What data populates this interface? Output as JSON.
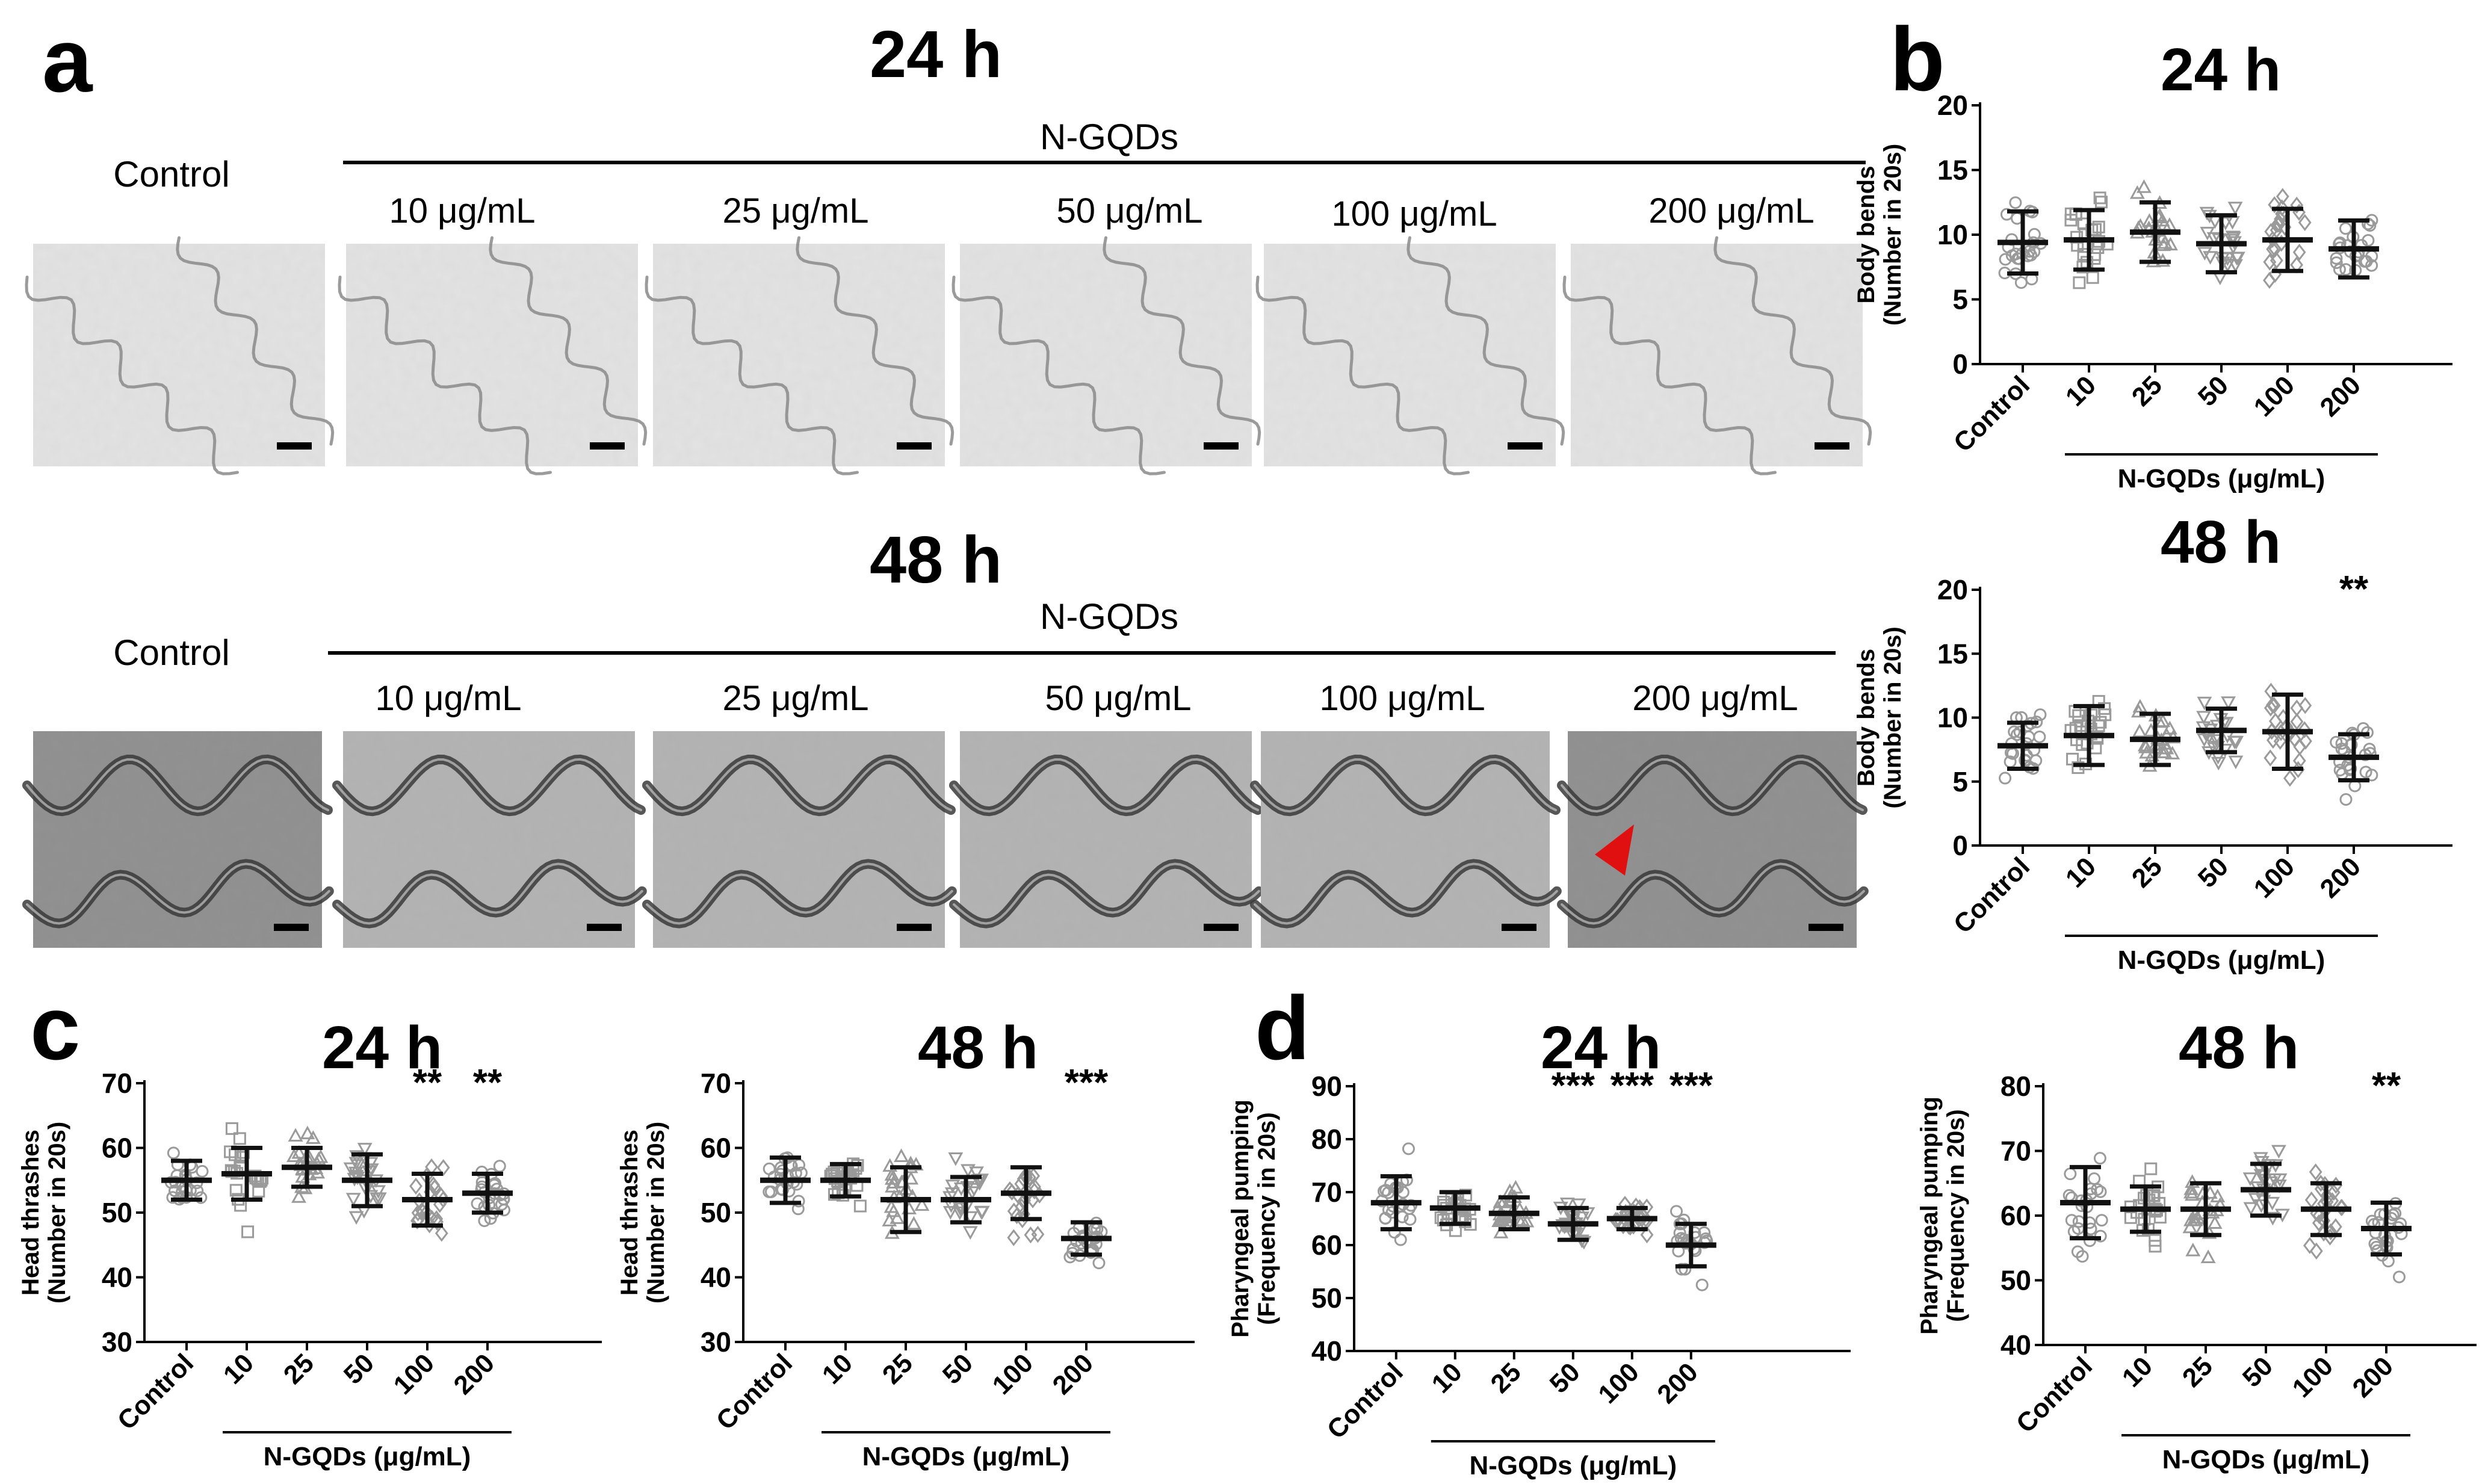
{
  "panel_a": {
    "letter": "a",
    "rows": [
      {
        "time": "24 h",
        "control_label": "Control",
        "group_label": "N-GQDs",
        "conc_labels": [
          "10 μg/mL",
          "25 μg/mL",
          "50 μg/mL",
          "100 μg/mL",
          "200 μg/mL"
        ]
      },
      {
        "time": "48 h",
        "control_label": "Control",
        "group_label": "N-GQDs",
        "conc_labels": [
          "10 μg/mL",
          "25 μg/mL",
          "50 μg/mL",
          "100 μg/mL",
          "200 μg/mL"
        ]
      }
    ]
  },
  "colors": {
    "bar_dark": "#111111",
    "marker": "#9a9a9a",
    "arrow": "#e01010",
    "image_bg_light": "#e2e2e2",
    "image_bg_dark": "#a9a9a9"
  },
  "chart_data": [
    {
      "id": "b24",
      "panel_letter": "b",
      "type": "scatter",
      "title": "24 h",
      "ylabel": [
        "Body bends",
        "(Number in 20s)"
      ],
      "ylim": [
        0,
        20
      ],
      "yticks": [
        0,
        5,
        10,
        15,
        20
      ],
      "categories": [
        "Control",
        "10",
        "25",
        "50",
        "100",
        "200"
      ],
      "xgroup_label": "N-GQDs (μg/mL)",
      "means": [
        9.4,
        9.6,
        10.2,
        9.3,
        9.6,
        8.9
      ],
      "sd": [
        2.4,
        2.3,
        2.3,
        2.2,
        2.4,
        2.2
      ],
      "marker_shapes": [
        "circle",
        "square",
        "triangle",
        "triangle-down",
        "diamond",
        "circle"
      ],
      "significance": [
        "",
        "",
        "",
        "",
        "",
        ""
      ]
    },
    {
      "id": "b48",
      "panel_letter": "",
      "type": "scatter",
      "title": "48 h",
      "ylabel": [
        "Body bends",
        "(Number in 20s)"
      ],
      "ylim": [
        0,
        20
      ],
      "yticks": [
        0,
        5,
        10,
        15,
        20
      ],
      "categories": [
        "Control",
        "10",
        "25",
        "50",
        "100",
        "200"
      ],
      "xgroup_label": "N-GQDs (μg/mL)",
      "means": [
        7.8,
        8.6,
        8.3,
        9.0,
        8.9,
        6.9
      ],
      "sd": [
        1.8,
        2.3,
        2.0,
        1.7,
        2.9,
        1.8
      ],
      "marker_shapes": [
        "circle",
        "square",
        "triangle",
        "triangle-down",
        "diamond",
        "circle"
      ],
      "significance": [
        "",
        "",
        "",
        "",
        "",
        "**"
      ]
    },
    {
      "id": "c24",
      "panel_letter": "c",
      "type": "scatter",
      "title": "24 h",
      "ylabel": [
        "Head thrashes",
        "(Number in 20s)"
      ],
      "ylim": [
        30,
        70
      ],
      "yticks": [
        30,
        40,
        50,
        60,
        70
      ],
      "categories": [
        "Control",
        "10",
        "25",
        "50",
        "100",
        "200"
      ],
      "xgroup_label": "N-GQDs (μg/mL)",
      "means": [
        55,
        56,
        57,
        55,
        52,
        53
      ],
      "sd": [
        3,
        4,
        3,
        4,
        4,
        3
      ],
      "marker_shapes": [
        "circle",
        "square",
        "triangle",
        "triangle-down",
        "diamond",
        "circle"
      ],
      "significance": [
        "",
        "",
        "",
        "",
        "**",
        "**"
      ]
    },
    {
      "id": "c48",
      "panel_letter": "",
      "type": "scatter",
      "title": "48 h",
      "ylabel": [
        "Head thrashes",
        "(Number in 20s)"
      ],
      "ylim": [
        30,
        70
      ],
      "yticks": [
        30,
        40,
        50,
        60,
        70
      ],
      "categories": [
        "Control",
        "10",
        "25",
        "50",
        "100",
        "200"
      ],
      "xgroup_label": "N-GQDs (μg/mL)",
      "means": [
        55,
        55,
        52,
        52,
        53,
        46
      ],
      "sd": [
        3.5,
        2.5,
        5,
        3.5,
        4,
        2.5
      ],
      "marker_shapes": [
        "circle",
        "square",
        "triangle",
        "triangle-down",
        "diamond",
        "circle"
      ],
      "significance": [
        "",
        "",
        "",
        "",
        "",
        "***"
      ]
    },
    {
      "id": "d24",
      "panel_letter": "d",
      "type": "scatter",
      "title": "24 h",
      "ylabel": [
        "Pharyngeal pumping",
        "(Frequency in 20s)"
      ],
      "ylim": [
        40,
        90
      ],
      "yticks": [
        40,
        50,
        60,
        70,
        80,
        90
      ],
      "categories": [
        "Control",
        "10",
        "25",
        "50",
        "100",
        "200"
      ],
      "xgroup_label": "N-GQDs (μg/mL)",
      "means": [
        68,
        67,
        66,
        64,
        65,
        60
      ],
      "sd": [
        5,
        3,
        3,
        3,
        2,
        4
      ],
      "marker_shapes": [
        "circle",
        "square",
        "triangle",
        "triangle-down",
        "diamond",
        "circle"
      ],
      "significance": [
        "",
        "",
        "",
        "***",
        "***",
        "***"
      ]
    },
    {
      "id": "d48",
      "panel_letter": "",
      "type": "scatter",
      "title": "48 h",
      "ylabel": [
        "Pharyngeal pumping",
        "(Frequency in 20s)"
      ],
      "ylim": [
        40,
        80
      ],
      "yticks": [
        40,
        50,
        60,
        70,
        80
      ],
      "categories": [
        "Control",
        "10",
        "25",
        "50",
        "100",
        "200"
      ],
      "xgroup_label": "N-GQDs (μg/mL)",
      "means": [
        62,
        61,
        61,
        64,
        61,
        58
      ],
      "sd": [
        5.5,
        3.5,
        4,
        4,
        4,
        4
      ],
      "marker_shapes": [
        "circle",
        "square",
        "triangle",
        "triangle-down",
        "diamond",
        "circle"
      ],
      "significance": [
        "",
        "",
        "",
        "",
        "",
        "**"
      ]
    }
  ]
}
